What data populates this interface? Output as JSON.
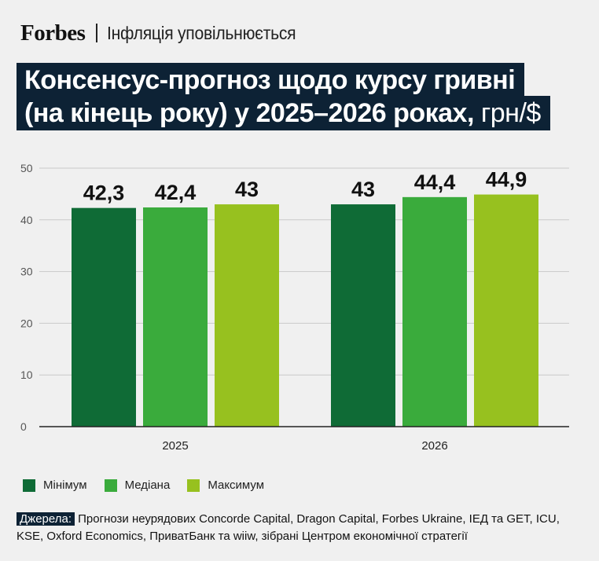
{
  "header": {
    "brand": "Forbes",
    "section": "Інфляція уповільнюється"
  },
  "title": {
    "line1": "Консенсус-прогноз щодо курсу гривні",
    "line2": "(на кінець року) у 2025–2026 роках,",
    "unit": "грн/$"
  },
  "chart_data": {
    "type": "bar",
    "categories": [
      "2025",
      "2026"
    ],
    "series": [
      {
        "name": "Мінімум",
        "color": "#0f6b36",
        "values": [
          42.3,
          43
        ],
        "labels": [
          "42,3",
          "43"
        ]
      },
      {
        "name": "Медіана",
        "color": "#3aab3c",
        "values": [
          42.4,
          44.4
        ],
        "labels": [
          "42,4",
          "44,4"
        ]
      },
      {
        "name": "Максимум",
        "color": "#97c11f",
        "values": [
          43,
          44.9
        ],
        "labels": [
          "43",
          "44,9"
        ]
      }
    ],
    "ylim": [
      0,
      50
    ],
    "yticks": [
      "0",
      "10",
      "20",
      "30",
      "40",
      "50"
    ],
    "grid": true,
    "legend_position": "bottom-left"
  },
  "legend": {
    "items": [
      {
        "label": "Мінімум",
        "color": "#0f6b36"
      },
      {
        "label": "Медіана",
        "color": "#3aab3c"
      },
      {
        "label": "Максимум",
        "color": "#97c11f"
      }
    ]
  },
  "source": {
    "label": "Джерела:",
    "text": " Прогнози неурядових Concorde Capital, Dragon Capital, Forbes Ukraine, ІЕД та GET, ICU, KSE, Oxford Economics, ПриватБанк та wiiw, зібрані Центром економічної стратегії"
  }
}
